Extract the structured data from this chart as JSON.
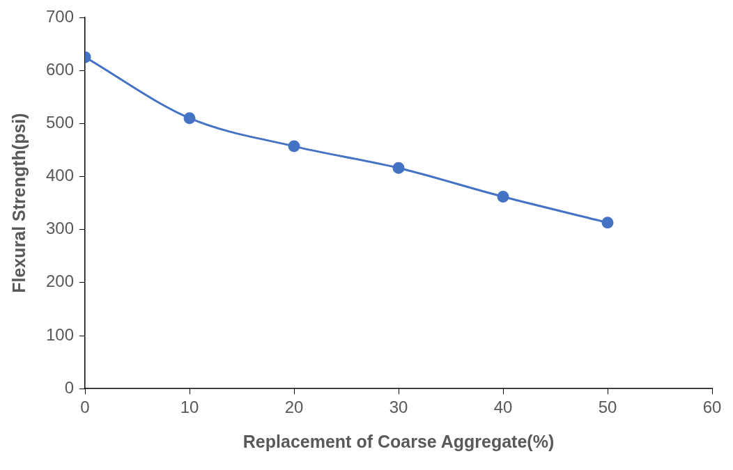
{
  "chart_data": {
    "type": "line",
    "xlabel": "Replacement of Coarse Aggregate(%)",
    "ylabel": "Flexural Strength(psi)",
    "x": [
      0,
      10,
      20,
      30,
      40,
      50
    ],
    "series": [
      {
        "color": "#4472c4",
        "values": [
          625,
          510,
          457,
          416,
          362,
          313
        ]
      }
    ],
    "xlim": [
      0,
      60
    ],
    "xticks": [
      0,
      10,
      20,
      30,
      40,
      50,
      60
    ],
    "ylim": [
      0,
      700
    ],
    "yticks": [
      0,
      100,
      200,
      300,
      400,
      500,
      600,
      700
    ],
    "grid": false,
    "legend": false,
    "marker": "circle",
    "line_style": "solid"
  }
}
